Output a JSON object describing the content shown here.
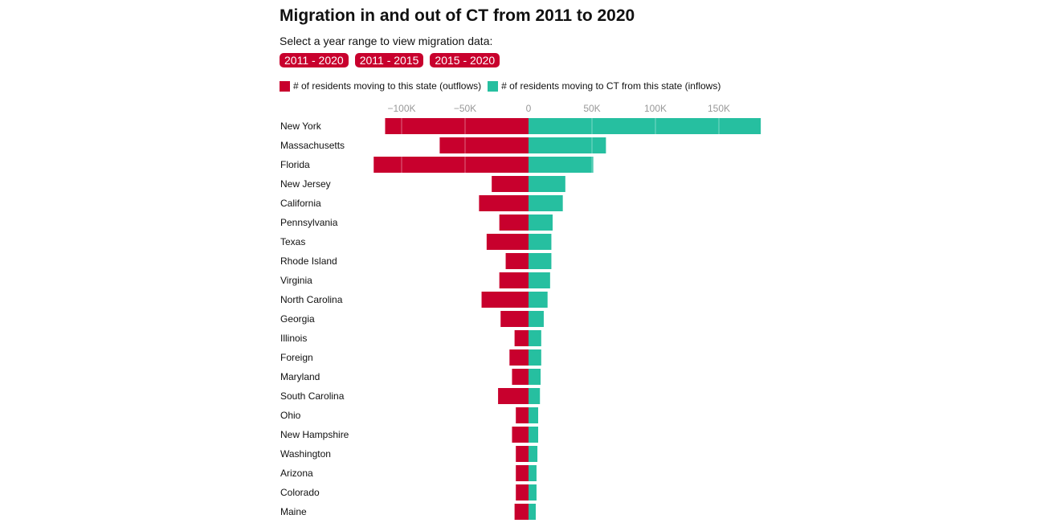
{
  "title": "Migration in and out of CT from 2011 to 2020",
  "subtitle": "Select a year range to view migration data:",
  "buttons": [
    "2011 - 2020",
    "2011 - 2015",
    "2015 - 2020"
  ],
  "colors": {
    "outflow": "#c8002d",
    "inflow": "#26bfa0"
  },
  "chart_data": {
    "type": "bar",
    "orientation": "horizontal-diverging",
    "xlim": [
      -125000,
      185000
    ],
    "xticks": [
      -100000,
      -50000,
      0,
      50000,
      100000,
      150000
    ],
    "xtick_labels": [
      "−100K",
      "−50K",
      "0",
      "50K",
      "100K",
      "150K"
    ],
    "grid": true,
    "legend_placement": "top-left",
    "categories": [
      "New York",
      "Massachusetts",
      "Florida",
      "New Jersey",
      "California",
      "Pennsylvania",
      "Texas",
      "Rhode Island",
      "Virginia",
      "North Carolina",
      "Georgia",
      "Illinois",
      "Foreign",
      "Maryland",
      "South Carolina",
      "Ohio",
      "New Hampshire",
      "Washington",
      "Arizona",
      "Colorado",
      "Maine"
    ],
    "series": [
      {
        "name": "# of residents moving to this state (outflows)",
        "color": "#c8002d",
        "values": [
          -113000,
          -70000,
          -122000,
          -29000,
          -39000,
          -23000,
          -33000,
          -18000,
          -23000,
          -37000,
          -22000,
          -11000,
          -15000,
          -13000,
          -24000,
          -10000,
          -13000,
          -10000,
          -10000,
          -10000,
          -11000
        ]
      },
      {
        "name": "# of residents moving to CT from this state (inflows)",
        "color": "#26bfa0",
        "values": [
          183000,
          61000,
          51000,
          29000,
          27000,
          19000,
          18000,
          18000,
          17000,
          15000,
          12000,
          10000,
          10000,
          9500,
          9000,
          7600,
          7600,
          7000,
          6300,
          6300,
          5700
        ]
      }
    ]
  }
}
